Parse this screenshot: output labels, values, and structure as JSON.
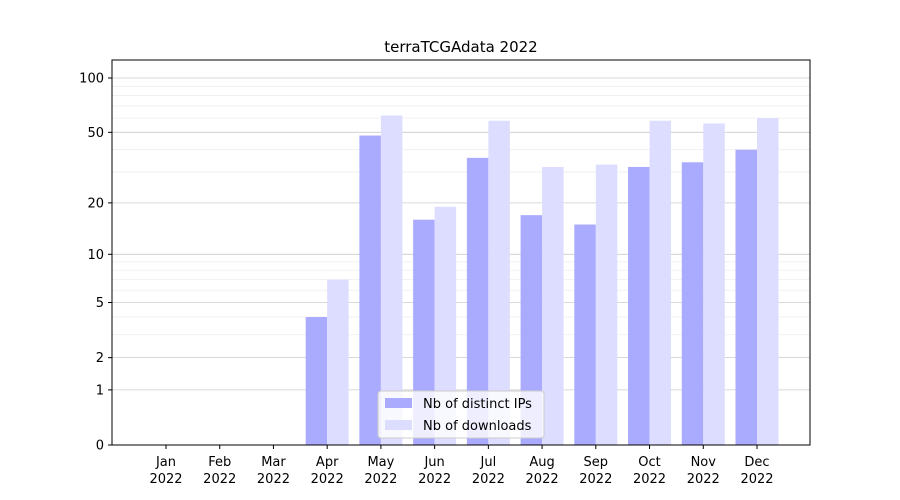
{
  "chart_data": {
    "type": "bar",
    "title": "terraTCGAdata 2022",
    "xlabel": "",
    "ylabel": "",
    "yscale": "log(1+y)",
    "ylim": [
      0,
      120
    ],
    "grid": "horizontal, major and minor",
    "legend_position": "bottom-center",
    "categories": [
      "Jan\n2022",
      "Feb\n2022",
      "Mar\n2022",
      "Apr\n2022",
      "May\n2022",
      "Jun\n2022",
      "Jul\n2022",
      "Aug\n2022",
      "Sep\n2022",
      "Oct\n2022",
      "Nov\n2022",
      "Dec\n2022"
    ],
    "category_lines": [
      [
        "Jan",
        "2022"
      ],
      [
        "Feb",
        "2022"
      ],
      [
        "Mar",
        "2022"
      ],
      [
        "Apr",
        "2022"
      ],
      [
        "May",
        "2022"
      ],
      [
        "Jun",
        "2022"
      ],
      [
        "Jul",
        "2022"
      ],
      [
        "Aug",
        "2022"
      ],
      [
        "Sep",
        "2022"
      ],
      [
        "Oct",
        "2022"
      ],
      [
        "Nov",
        "2022"
      ],
      [
        "Dec",
        "2022"
      ]
    ],
    "yticks": [
      0,
      1,
      2,
      5,
      10,
      20,
      50,
      100
    ],
    "series": [
      {
        "name": "Nb of distinct IPs",
        "color": "#aaaaff",
        "values": [
          0,
          0,
          0,
          4,
          48,
          16,
          36,
          17,
          15,
          32,
          34,
          40
        ]
      },
      {
        "name": "Nb of downloads",
        "color": "#ddddff",
        "values": [
          0,
          0,
          0,
          7,
          62,
          19,
          58,
          32,
          33,
          58,
          56,
          60
        ]
      }
    ]
  }
}
